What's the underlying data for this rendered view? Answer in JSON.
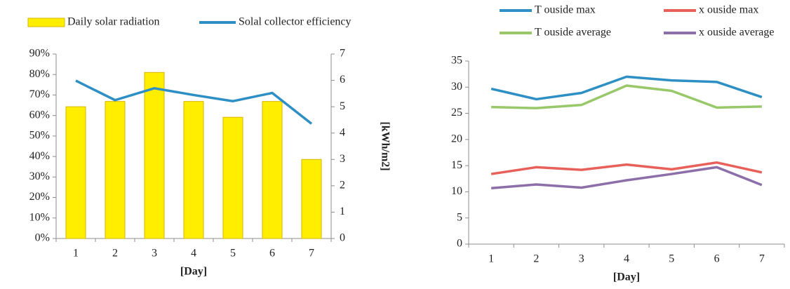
{
  "chart_data": [
    {
      "type": "bar",
      "categories": [
        "1",
        "2",
        "3",
        "4",
        "5",
        "6",
        "7"
      ],
      "series": [
        {
          "name": "Daily solar radiation",
          "type": "bar",
          "color": "#ffee00",
          "axis": "y2",
          "values": [
            5.0,
            5.2,
            6.3,
            5.2,
            4.6,
            5.2,
            3.0
          ]
        },
        {
          "name": "Solal collector efficiency",
          "type": "line",
          "color": "#2e8fc4",
          "values": [
            77,
            67.5,
            73.3,
            70,
            67,
            71,
            56
          ]
        }
      ],
      "ylim": [
        0,
        90
      ],
      "yticks": [
        {
          "value": 0,
          "label": "0%"
        },
        {
          "value": 10,
          "label": "10%"
        },
        {
          "value": 20,
          "label": "20%"
        },
        {
          "value": 30,
          "label": "30%"
        },
        {
          "value": 40,
          "label": "40%"
        },
        {
          "value": 50,
          "label": "50%"
        },
        {
          "value": 60,
          "label": "60%"
        },
        {
          "value": 70,
          "label": "70%"
        },
        {
          "value": 80,
          "label": "80%"
        },
        {
          "value": 90,
          "label": "90%"
        }
      ],
      "y2lim": [
        0,
        7
      ],
      "y2ticks": [
        0,
        1,
        2,
        3,
        4,
        5,
        6,
        7
      ],
      "xlabel": "[Day]",
      "y2label": "[kWh/m2]",
      "grid": false,
      "legend": "top"
    },
    {
      "type": "line",
      "categories": [
        "1",
        "2",
        "3",
        "4",
        "5",
        "6",
        "7"
      ],
      "series": [
        {
          "name": "T ouside max",
          "color": "#2e8fc4",
          "values": [
            29.7,
            27.7,
            28.9,
            32,
            31.3,
            31,
            28.1
          ]
        },
        {
          "name": "x ouside max",
          "color": "#e8605a",
          "values": [
            13.4,
            14.7,
            14.2,
            15.2,
            14.3,
            15.6,
            13.7
          ]
        },
        {
          "name": "T ouside average",
          "color": "#98c86a",
          "values": [
            26.2,
            26,
            26.6,
            30.3,
            29.3,
            26.1,
            26.3
          ]
        },
        {
          "name": "x ouside average",
          "color": "#8c6fa8",
          "values": [
            10.7,
            11.4,
            10.8,
            12.2,
            13.4,
            14.7,
            11.3
          ]
        }
      ],
      "ylim": [
        0,
        35
      ],
      "yticks": [
        0,
        5,
        10,
        15,
        20,
        25,
        30,
        35
      ],
      "xlabel": "[Day]",
      "grid": false,
      "legend": "top"
    }
  ]
}
